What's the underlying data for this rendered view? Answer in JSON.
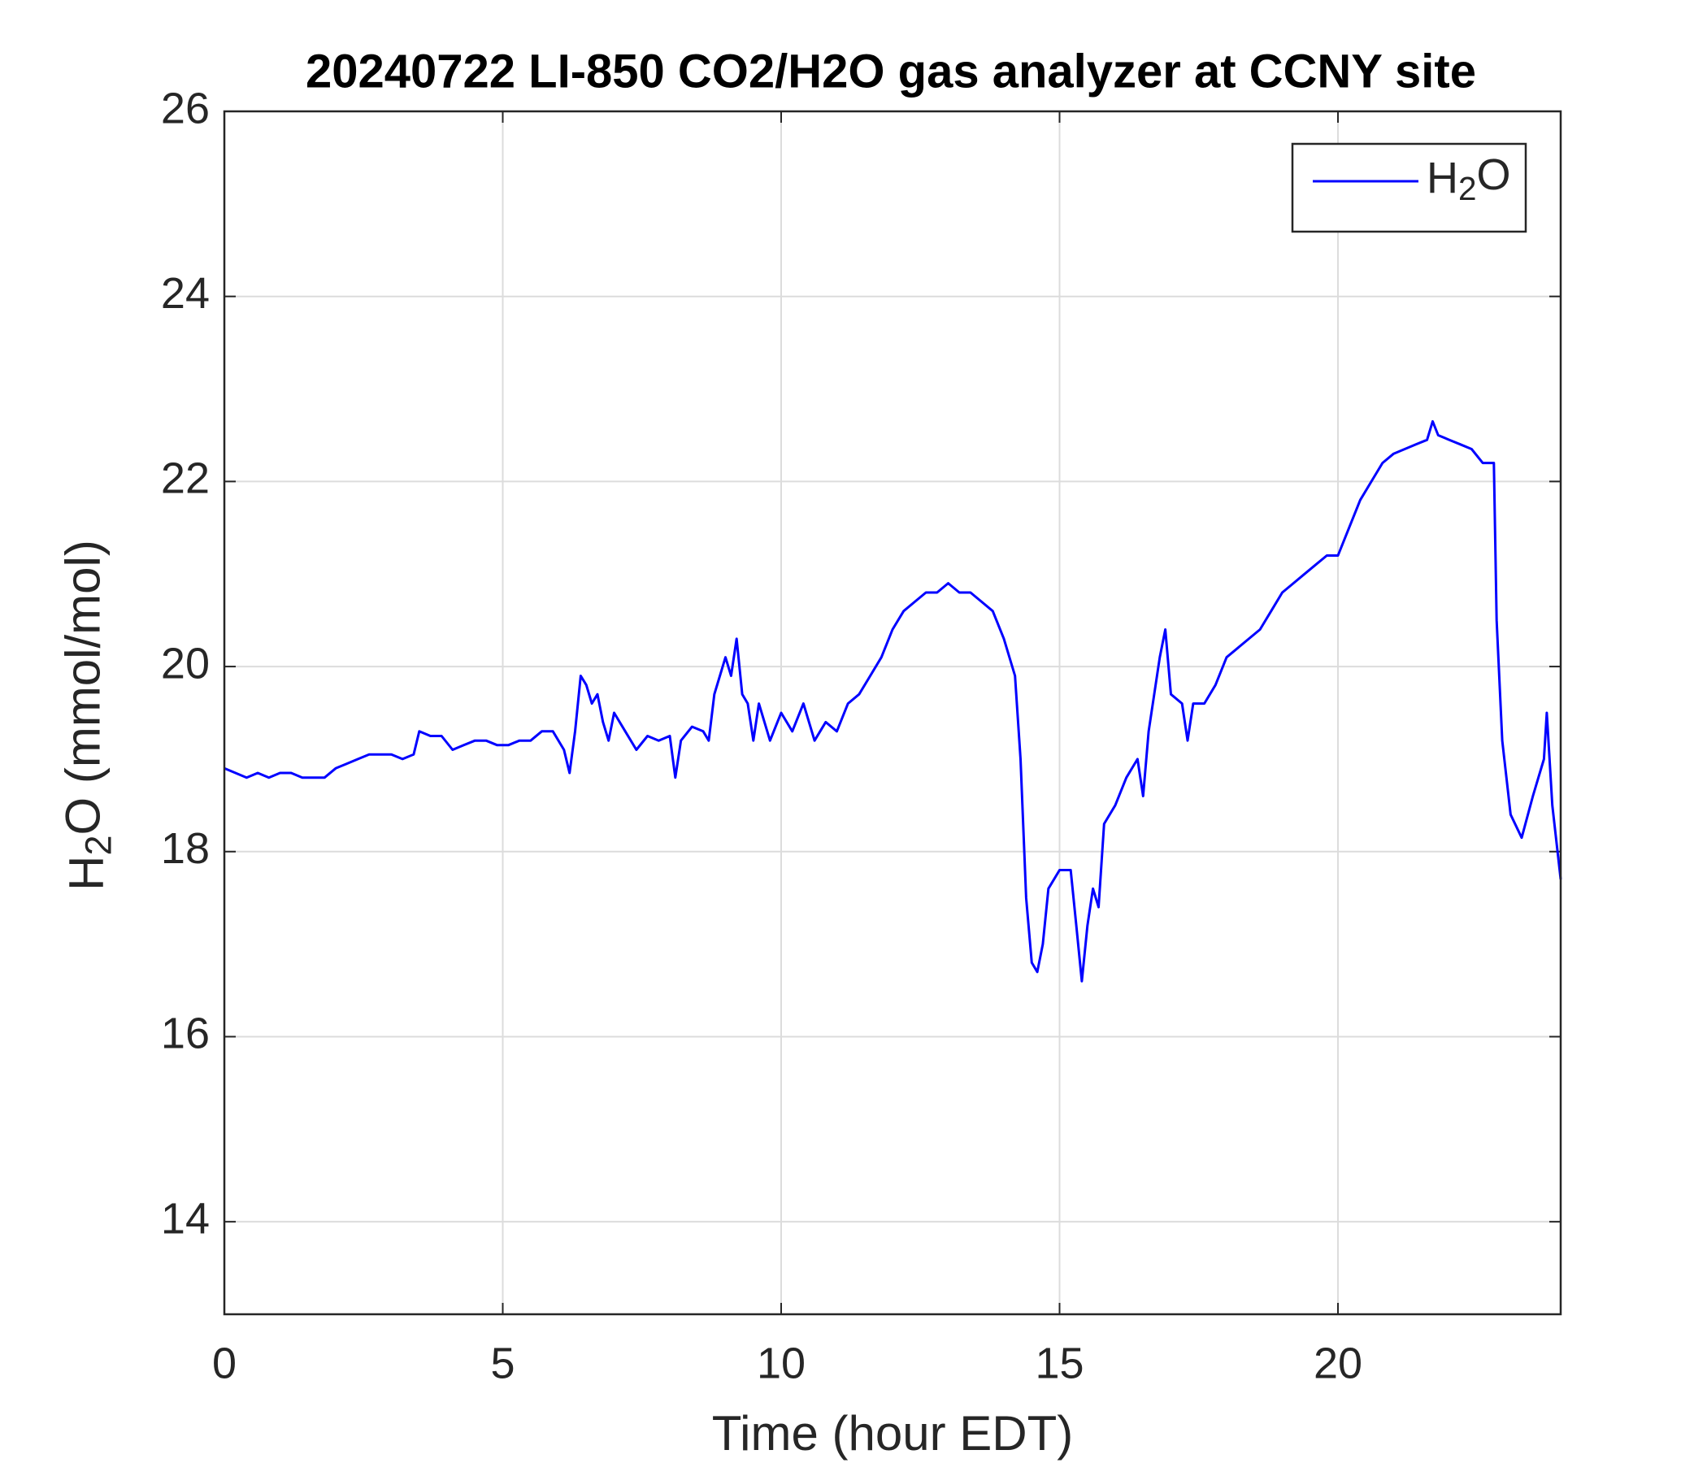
{
  "chart_data": {
    "type": "line",
    "title": "20240722 LI-850 CO2/H2O gas analyzer at CCNY site",
    "x_label": "Time (hour EDT)",
    "y_label": "H2O (mmol/mol)",
    "xlim": [
      0,
      24
    ],
    "xticks": [
      0,
      5,
      10,
      15,
      20
    ],
    "ylim": [
      13,
      26
    ],
    "yticks": [
      14,
      16,
      18,
      20,
      22,
      24,
      26
    ],
    "grid": true,
    "legend": "upper right",
    "x": [
      0,
      0.2,
      0.4,
      0.6,
      0.8,
      1.0,
      1.2,
      1.4,
      1.6,
      1.8,
      2.0,
      2.2,
      2.4,
      2.6,
      2.8,
      3.0,
      3.2,
      3.4,
      3.5,
      3.7,
      3.9,
      4.1,
      4.3,
      4.5,
      4.7,
      4.9,
      5.1,
      5.3,
      5.5,
      5.7,
      5.9,
      6.1,
      6.2,
      6.3,
      6.4,
      6.5,
      6.6,
      6.7,
      6.8,
      6.9,
      7.0,
      7.2,
      7.4,
      7.6,
      7.8,
      8.0,
      8.1,
      8.2,
      8.4,
      8.6,
      8.7,
      8.8,
      9.0,
      9.1,
      9.2,
      9.3,
      9.4,
      9.5,
      9.6,
      9.8,
      10.0,
      10.2,
      10.4,
      10.6,
      10.8,
      11.0,
      11.2,
      11.4,
      11.6,
      11.8,
      12.0,
      12.2,
      12.4,
      12.6,
      12.8,
      13.0,
      13.2,
      13.4,
      13.6,
      13.8,
      14.0,
      14.2,
      14.3,
      14.4,
      14.5,
      14.6,
      14.7,
      14.8,
      15.0,
      15.2,
      15.3,
      15.4,
      15.5,
      15.6,
      15.7,
      15.8,
      16.0,
      16.2,
      16.4,
      16.5,
      16.6,
      16.8,
      16.9,
      17.0,
      17.2,
      17.3,
      17.4,
      17.6,
      17.8,
      18.0,
      18.2,
      18.4,
      18.6,
      18.8,
      19.0,
      19.2,
      19.4,
      19.6,
      19.8,
      20.0,
      20.2,
      20.4,
      20.6,
      20.8,
      21.0,
      21.2,
      21.4,
      21.6,
      21.7,
      21.8,
      22.0,
      22.2,
      22.4,
      22.6,
      22.8,
      22.85,
      22.95,
      23.1,
      23.3,
      23.5,
      23.6,
      23.7,
      23.75,
      23.85,
      24.0
    ],
    "series": [
      {
        "name": "H2O",
        "color": "#0000ff",
        "values": [
          18.9,
          18.85,
          18.8,
          18.85,
          18.8,
          18.85,
          18.85,
          18.8,
          18.8,
          18.8,
          18.9,
          18.95,
          19.0,
          19.05,
          19.05,
          19.05,
          19.0,
          19.05,
          19.3,
          19.25,
          19.25,
          19.1,
          19.15,
          19.2,
          19.2,
          19.15,
          19.15,
          19.2,
          19.2,
          19.3,
          19.3,
          19.1,
          18.85,
          19.3,
          19.9,
          19.8,
          19.6,
          19.7,
          19.4,
          19.2,
          19.5,
          19.3,
          19.1,
          19.25,
          19.2,
          19.25,
          18.8,
          19.2,
          19.35,
          19.3,
          19.2,
          19.7,
          20.1,
          19.9,
          20.3,
          19.7,
          19.6,
          19.2,
          19.6,
          19.2,
          19.5,
          19.3,
          19.6,
          19.2,
          19.4,
          19.3,
          19.6,
          19.7,
          19.9,
          20.1,
          20.4,
          20.6,
          20.7,
          20.8,
          20.8,
          20.9,
          20.8,
          20.8,
          20.7,
          20.6,
          20.3,
          19.9,
          19.0,
          17.5,
          16.8,
          16.7,
          17.0,
          17.6,
          17.8,
          17.8,
          17.2,
          16.6,
          17.2,
          17.6,
          17.4,
          18.3,
          18.5,
          18.8,
          19.0,
          18.6,
          19.3,
          20.1,
          20.4,
          19.7,
          19.6,
          19.2,
          19.6,
          19.6,
          19.8,
          20.1,
          20.2,
          20.3,
          20.4,
          20.6,
          20.8,
          20.9,
          21.0,
          21.1,
          21.2,
          21.2,
          21.5,
          21.8,
          22.0,
          22.2,
          22.3,
          22.35,
          22.4,
          22.45,
          22.65,
          22.5,
          22.45,
          22.4,
          22.35,
          22.2,
          22.2,
          20.5,
          19.2,
          18.4,
          18.15,
          18.6,
          18.8,
          19.0,
          19.5,
          18.5,
          17.7
        ]
      }
    ]
  }
}
